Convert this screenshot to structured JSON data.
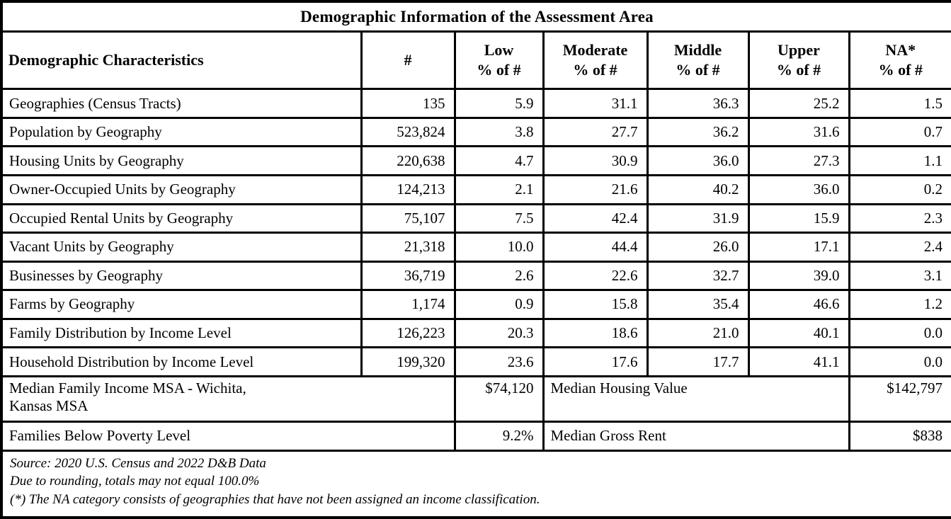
{
  "table": {
    "title": "Demographic Information of the Assessment Area",
    "columns": [
      {
        "label": "Demographic Characteristics",
        "sub": ""
      },
      {
        "label": "#",
        "sub": ""
      },
      {
        "label": "Low",
        "sub": "% of #"
      },
      {
        "label": "Moderate",
        "sub": "% of #"
      },
      {
        "label": "Middle",
        "sub": "% of #"
      },
      {
        "label": "Upper",
        "sub": "% of #"
      },
      {
        "label": "NA*",
        "sub": "% of #"
      }
    ],
    "rows": [
      {
        "label": "Geographies (Census Tracts)",
        "values": [
          "135",
          "5.9",
          "31.1",
          "36.3",
          "25.2",
          "1.5"
        ]
      },
      {
        "label": "Population by Geography",
        "values": [
          "523,824",
          "3.8",
          "27.7",
          "36.2",
          "31.6",
          "0.7"
        ]
      },
      {
        "label": "Housing Units by Geography",
        "values": [
          "220,638",
          "4.7",
          "30.9",
          "36.0",
          "27.3",
          "1.1"
        ]
      },
      {
        "label": "Owner-Occupied Units by Geography",
        "values": [
          "124,213",
          "2.1",
          "21.6",
          "40.2",
          "36.0",
          "0.2"
        ]
      },
      {
        "label": "Occupied Rental Units by Geography",
        "values": [
          "75,107",
          "7.5",
          "42.4",
          "31.9",
          "15.9",
          "2.3"
        ]
      },
      {
        "label": "Vacant Units by Geography",
        "values": [
          "21,318",
          "10.0",
          "44.4",
          "26.0",
          "17.1",
          "2.4"
        ]
      },
      {
        "label": "Businesses by Geography",
        "values": [
          "36,719",
          "2.6",
          "22.6",
          "32.7",
          "39.0",
          "3.1"
        ]
      },
      {
        "label": "Farms by Geography",
        "values": [
          "1,174",
          "0.9",
          "15.8",
          "35.4",
          "46.6",
          "1.2"
        ]
      },
      {
        "label": "Family Distribution by Income Level",
        "values": [
          "126,223",
          "20.3",
          "18.6",
          "21.0",
          "40.1",
          "0.0"
        ]
      },
      {
        "label": "Household Distribution by Income Level",
        "values": [
          "199,320",
          "23.6",
          "17.6",
          "17.7",
          "41.1",
          "0.0"
        ]
      }
    ],
    "summary_rows": [
      {
        "label_line1": "Median Family Income MSA - Wichita,",
        "label_line2": "Kansas MSA",
        "value": "$74,120",
        "label2": "Median Housing Value",
        "value2": "$142,797"
      },
      {
        "label": "Families Below Poverty Level",
        "value": "9.2%",
        "label2": "Median Gross Rent",
        "value2": "$838"
      }
    ],
    "footnotes": [
      "Source: 2020 U.S. Census and 2022 D&B Data",
      "Due to rounding, totals may not equal 100.0%",
      "(*) The NA category consists of geographies that have not been assigned an income classification."
    ]
  }
}
